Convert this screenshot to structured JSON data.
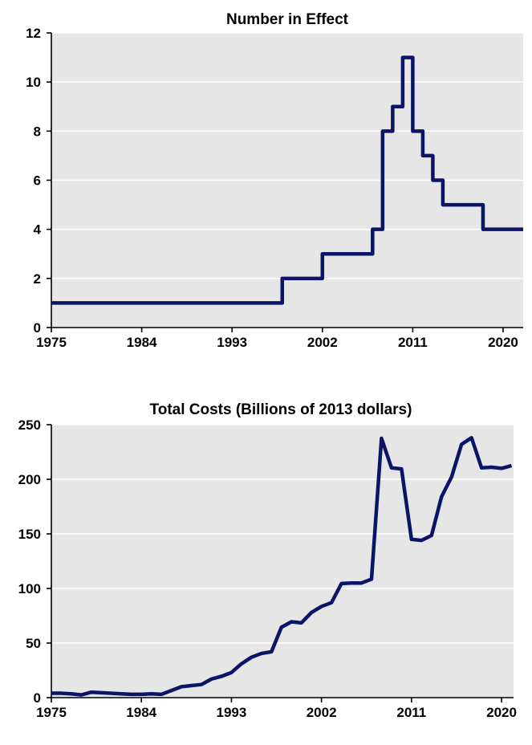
{
  "colors": {
    "series": "#0b1466",
    "plot_background": "#e6e6e6",
    "grid": "#ffffff"
  },
  "chart_data": [
    {
      "type": "line",
      "step": true,
      "title": "Number in Effect",
      "xlabel": "",
      "ylabel": "",
      "xlim": [
        1975,
        2022
      ],
      "ylim": [
        0,
        12
      ],
      "x_ticks": [
        "1975",
        "1984",
        "1993",
        "2002",
        "2011",
        "2020"
      ],
      "y_ticks": [
        "0",
        "2",
        "4",
        "6",
        "8",
        "10",
        "12"
      ],
      "grid": true,
      "series": [
        {
          "x": [
            1975,
            1998,
            2002,
            2007,
            2008,
            2009,
            2010,
            2011,
            2012,
            2013,
            2014,
            2018,
            2022
          ],
          "values": [
            1,
            2,
            3,
            4,
            8,
            9,
            11,
            8,
            7,
            6,
            5,
            4,
            4
          ]
        }
      ]
    },
    {
      "type": "line",
      "title": "Total Costs (Billions of 2013 dollars)",
      "xlabel": "",
      "ylabel": "",
      "xlim": [
        1975,
        2021.2
      ],
      "ylim": [
        0,
        250
      ],
      "x_ticks": [
        "1975",
        "1984",
        "1993",
        "2002",
        "2011",
        "2020"
      ],
      "y_ticks": [
        "0",
        "50",
        "100",
        "150",
        "200",
        "250"
      ],
      "grid": true,
      "series": [
        {
          "x": [
            1975,
            1976,
            1977,
            1978,
            1979,
            1980,
            1981,
            1982,
            1983,
            1984,
            1985,
            1986,
            1987,
            1988,
            1989,
            1990,
            1991,
            1992,
            1993,
            1994,
            1995,
            1996,
            1997,
            1998,
            1999,
            2000,
            2001,
            2002,
            2003,
            2004,
            2005,
            2006,
            2007,
            2008,
            2009,
            2010,
            2011,
            2012,
            2013,
            2014,
            2015,
            2016,
            2017,
            2018,
            2019,
            2020,
            2021
          ],
          "values": [
            4,
            4,
            3.5,
            2.5,
            5,
            4.5,
            4,
            3.5,
            3,
            3,
            3.5,
            3,
            6.5,
            10,
            11,
            12,
            17,
            19.5,
            23,
            31,
            37,
            40.5,
            42,
            64.5,
            69.5,
            68.5,
            78,
            83.5,
            87,
            104.5,
            105,
            105,
            108.5,
            237.5,
            210.5,
            209.5,
            145,
            144,
            148.5,
            184,
            202,
            232,
            238,
            210.5,
            211,
            210,
            212.5
          ]
        }
      ]
    }
  ]
}
